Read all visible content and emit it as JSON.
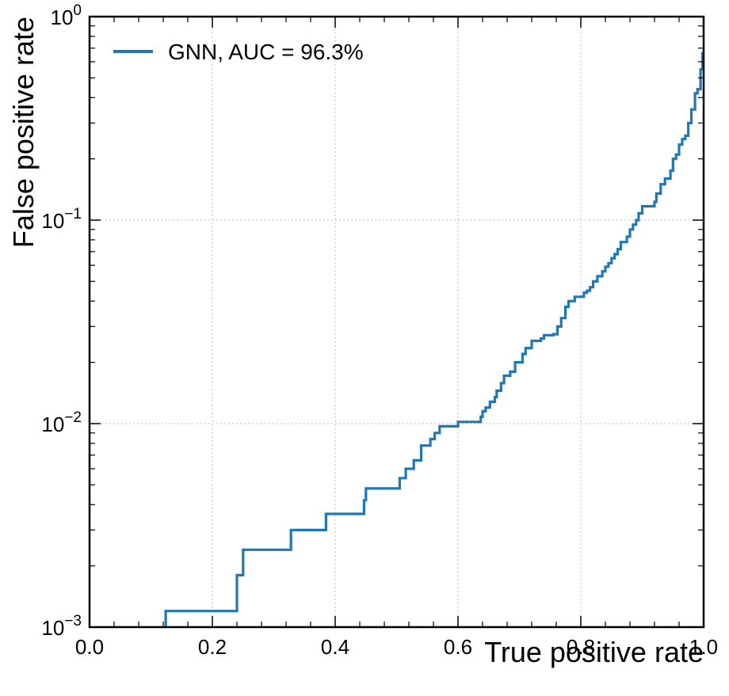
{
  "chart_data": {
    "type": "line",
    "step": true,
    "title": "",
    "xlabel": "True positive rate",
    "ylabel": "False positive rate",
    "xlim": [
      0.0,
      1.0
    ],
    "ylim": [
      0.001,
      1.0
    ],
    "yscale": "log",
    "grid": true,
    "legend_position": "top-left",
    "x_ticks": [
      "0.0",
      "0.2",
      "0.4",
      "0.6",
      "0.8",
      "1.0"
    ],
    "y_ticks": [
      {
        "base": "10",
        "exp": "0"
      },
      {
        "base": "10",
        "exp": "−1"
      },
      {
        "base": "10",
        "exp": "−2"
      },
      {
        "base": "10",
        "exp": "−3"
      }
    ],
    "series": [
      {
        "name": "GNN, AUC = 96.3%",
        "color": "#1f77b4",
        "x": [
          0.124,
          0.124,
          0.24,
          0.24,
          0.25,
          0.25,
          0.328,
          0.328,
          0.385,
          0.385,
          0.447,
          0.447,
          0.45,
          0.45,
          0.505,
          0.505,
          0.515,
          0.515,
          0.528,
          0.528,
          0.54,
          0.54,
          0.555,
          0.555,
          0.562,
          0.562,
          0.57,
          0.57,
          0.6,
          0.6,
          0.637,
          0.637,
          0.64,
          0.64,
          0.645,
          0.645,
          0.652,
          0.652,
          0.66,
          0.66,
          0.663,
          0.663,
          0.67,
          0.67,
          0.675,
          0.675,
          0.685,
          0.685,
          0.693,
          0.693,
          0.705,
          0.705,
          0.71,
          0.71,
          0.72,
          0.72,
          0.735,
          0.735,
          0.74,
          0.74,
          0.755,
          0.755,
          0.762,
          0.762,
          0.768,
          0.768,
          0.775,
          0.775,
          0.78,
          0.78,
          0.79,
          0.79,
          0.805,
          0.805,
          0.81,
          0.81,
          0.815,
          0.815,
          0.82,
          0.82,
          0.827,
          0.827,
          0.835,
          0.835,
          0.84,
          0.84,
          0.845,
          0.845,
          0.85,
          0.85,
          0.855,
          0.855,
          0.86,
          0.86,
          0.865,
          0.865,
          0.875,
          0.875,
          0.88,
          0.88,
          0.885,
          0.885,
          0.89,
          0.89,
          0.894,
          0.894,
          0.9,
          0.9,
          0.92,
          0.92,
          0.923,
          0.923,
          0.93,
          0.93,
          0.937,
          0.937,
          0.946,
          0.946,
          0.95,
          0.95,
          0.955,
          0.955,
          0.96,
          0.96,
          0.965,
          0.965,
          0.97,
          0.97,
          0.975,
          0.975,
          0.98,
          0.98,
          0.986,
          0.986,
          0.99,
          0.99,
          0.995,
          0.995,
          0.998,
          0.998,
          1.0
        ],
        "y": [
          0.0009,
          0.0012,
          0.0012,
          0.0018,
          0.0018,
          0.0024,
          0.0024,
          0.003,
          0.003,
          0.0036,
          0.0036,
          0.0042,
          0.0042,
          0.0048,
          0.0048,
          0.0054,
          0.0054,
          0.006,
          0.006,
          0.0066,
          0.0066,
          0.0078,
          0.0078,
          0.0084,
          0.0084,
          0.009,
          0.009,
          0.0097,
          0.0097,
          0.0102,
          0.0102,
          0.0108,
          0.0108,
          0.0115,
          0.0115,
          0.012,
          0.012,
          0.0128,
          0.0128,
          0.0135,
          0.0135,
          0.0145,
          0.0145,
          0.0158,
          0.0158,
          0.0172,
          0.0172,
          0.018,
          0.018,
          0.02,
          0.02,
          0.022,
          0.022,
          0.0235,
          0.0235,
          0.0255,
          0.0255,
          0.0262,
          0.0262,
          0.0272,
          0.0272,
          0.0275,
          0.0275,
          0.03,
          0.03,
          0.033,
          0.033,
          0.0375,
          0.0375,
          0.04,
          0.04,
          0.042,
          0.042,
          0.044,
          0.044,
          0.045,
          0.045,
          0.0468,
          0.0468,
          0.05,
          0.05,
          0.053,
          0.053,
          0.056,
          0.056,
          0.059,
          0.059,
          0.0615,
          0.0615,
          0.065,
          0.065,
          0.068,
          0.068,
          0.072,
          0.072,
          0.078,
          0.078,
          0.083,
          0.083,
          0.09,
          0.09,
          0.095,
          0.095,
          0.1,
          0.1,
          0.108,
          0.108,
          0.117,
          0.117,
          0.123,
          0.123,
          0.135,
          0.135,
          0.15,
          0.15,
          0.16,
          0.16,
          0.175,
          0.175,
          0.2,
          0.2,
          0.21,
          0.21,
          0.235,
          0.235,
          0.25,
          0.25,
          0.26,
          0.26,
          0.3,
          0.3,
          0.35,
          0.35,
          0.42,
          0.42,
          0.44,
          0.44,
          0.55,
          0.55,
          0.66,
          0.66
        ]
      }
    ]
  }
}
